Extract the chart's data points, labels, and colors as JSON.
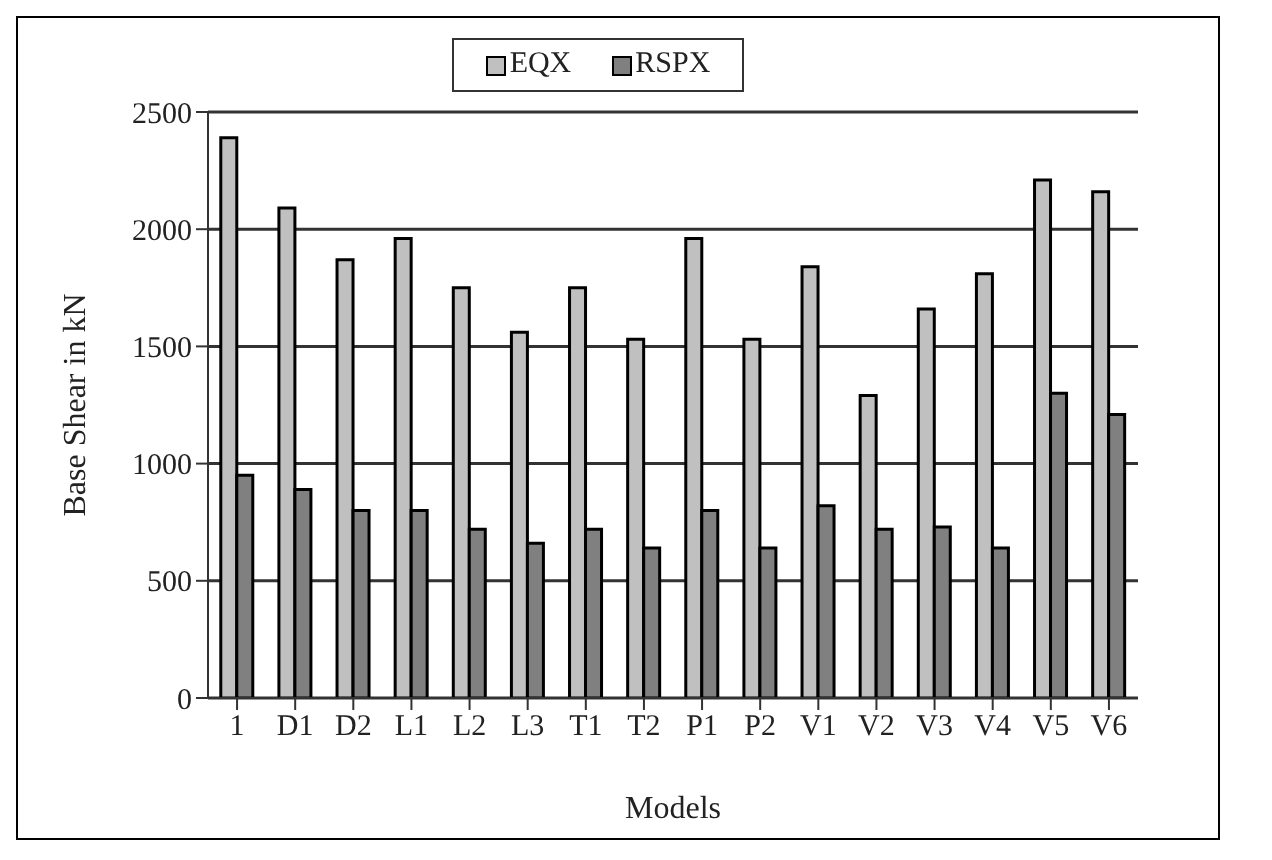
{
  "chart_data": {
    "type": "bar",
    "xlabel": "Models",
    "ylabel": "Base Shear in kN",
    "categories": [
      "1",
      "D1",
      "D2",
      "L1",
      "L2",
      "L3",
      "T1",
      "T2",
      "P1",
      "P2",
      "V1",
      "V2",
      "V3",
      "V4",
      "V5",
      "V6"
    ],
    "series": [
      {
        "name": "EQX",
        "color": "#c0c0c0",
        "values": [
          2390,
          2090,
          1870,
          1960,
          1750,
          1560,
          1750,
          1530,
          1960,
          1530,
          1840,
          1290,
          1660,
          1810,
          2210,
          2160
        ]
      },
      {
        "name": "RSPX",
        "color": "#808080",
        "values": [
          950,
          890,
          800,
          800,
          720,
          660,
          720,
          640,
          800,
          640,
          820,
          720,
          730,
          640,
          1300,
          1210
        ]
      }
    ],
    "ylim": [
      0,
      2500
    ],
    "yticks": [
      0,
      500,
      1000,
      1500,
      2000,
      2500
    ],
    "grid": "y",
    "legend": "top"
  }
}
